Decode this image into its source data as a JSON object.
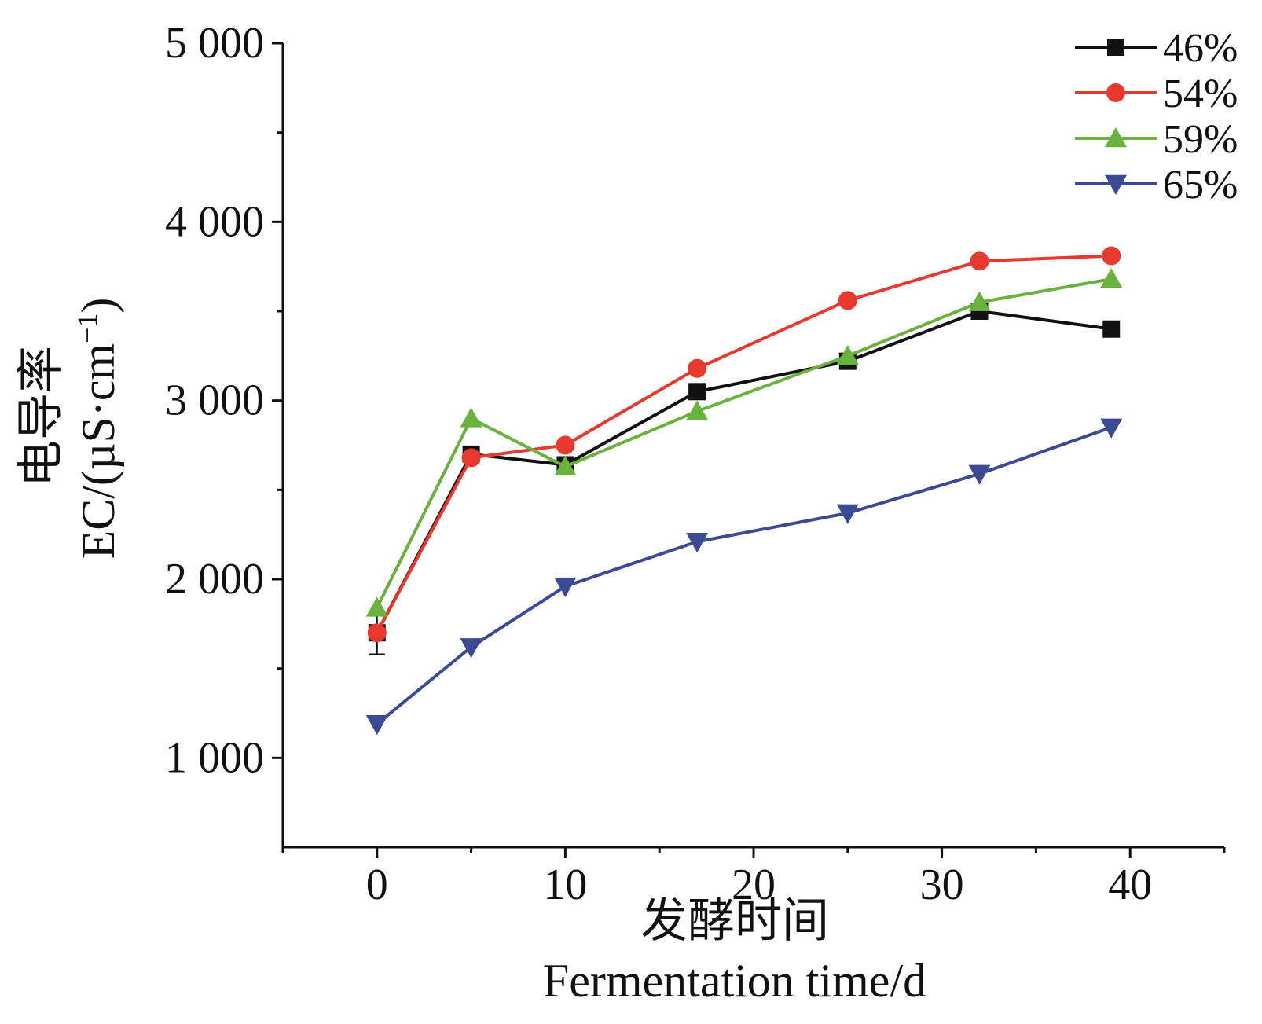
{
  "chart_data": {
    "type": "line",
    "x_title_zh": "发酵时间",
    "x_title_en": "Fermentation time/d",
    "y_title_zh": "电导率",
    "y_title_en_main": "EC/(µS·cm",
    "y_title_en_sup": "−1",
    "y_title_en_end": ")",
    "xlim": [
      -5,
      45
    ],
    "ylim": [
      500,
      5000
    ],
    "x_ticks": [
      0,
      10,
      20,
      30,
      40
    ],
    "x_tick_labels": [
      "0",
      "10",
      "20",
      "30",
      "40"
    ],
    "y_ticks": [
      1000,
      2000,
      3000,
      4000,
      5000
    ],
    "y_tick_labels": [
      "1 000",
      "2 000",
      "3 000",
      "4 000",
      "5 000"
    ],
    "legend_position": "top-right",
    "x": [
      0,
      5,
      10,
      17,
      25,
      32,
      39
    ],
    "series": [
      {
        "name": "46%",
        "color": "#111111",
        "marker": "square",
        "values": [
          1700,
          2700,
          2640,
          3050,
          3220,
          3500,
          3400
        ],
        "error_first": 120
      },
      {
        "name": "54%",
        "color": "#e8392f",
        "marker": "circle",
        "values": [
          1700,
          2680,
          2750,
          3180,
          3560,
          3780,
          3810
        ]
      },
      {
        "name": "59%",
        "color": "#6ab23e",
        "marker": "triangle-up",
        "values": [
          1840,
          2900,
          2630,
          2940,
          3250,
          3550,
          3680
        ]
      },
      {
        "name": "65%",
        "color": "#3a4a94",
        "marker": "triangle-down",
        "values": [
          1190,
          1620,
          1960,
          2210,
          2370,
          2590,
          2850
        ]
      }
    ]
  }
}
